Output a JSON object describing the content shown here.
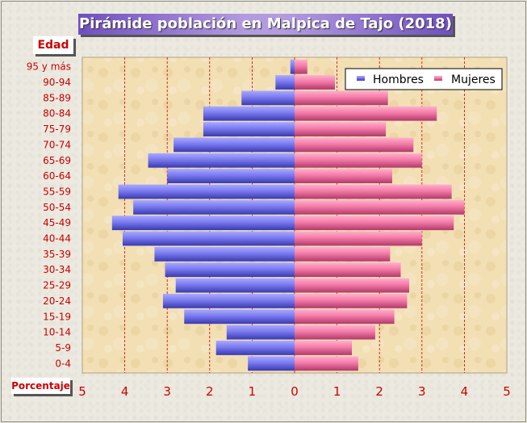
{
  "page": {
    "title": "Pirámide población en Malpica de Tajo (2018)",
    "y_axis_label": "Edad",
    "x_axis_label": "Porcentaje"
  },
  "colors": {
    "hombres": "#7777ee",
    "mujeres": "#f47aa8",
    "axis_text": "#cc0000"
  },
  "chart_data": {
    "type": "bar",
    "orientation": "horizontal-pyramid",
    "title": "Pirámide población en Malpica de Tajo (2018)",
    "xlabel": "Porcentaje",
    "ylabel": "Edad",
    "categories": [
      "0-4",
      "5-9",
      "10-14",
      "15-19",
      "20-24",
      "25-29",
      "30-34",
      "35-39",
      "40-44",
      "45-49",
      "50-54",
      "55-59",
      "60-64",
      "65-69",
      "70-74",
      "75-79",
      "80-84",
      "85-89",
      "90-94",
      "95 y más"
    ],
    "series": [
      {
        "name": "Hombres",
        "values": [
          1.1,
          1.85,
          1.6,
          2.6,
          3.1,
          2.8,
          3.05,
          3.3,
          4.05,
          4.3,
          3.8,
          4.15,
          3.0,
          3.45,
          2.85,
          2.15,
          2.15,
          1.25,
          0.45,
          0.1
        ]
      },
      {
        "name": "Mujeres",
        "values": [
          1.5,
          1.35,
          1.9,
          2.35,
          2.65,
          2.7,
          2.5,
          2.25,
          3.0,
          3.75,
          4.0,
          3.7,
          2.3,
          3.0,
          2.8,
          2.15,
          3.35,
          2.2,
          0.95,
          0.3
        ]
      }
    ],
    "xticks": [
      "5",
      "4",
      "3",
      "2",
      "1",
      "0",
      "1",
      "2",
      "3",
      "4",
      "5"
    ],
    "xlim": [
      -5,
      5
    ],
    "grid": "vertical dashed red",
    "legend": "top-right"
  }
}
